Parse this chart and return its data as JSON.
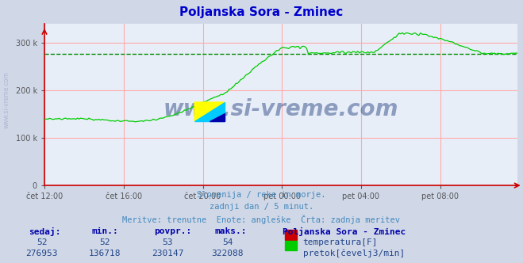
{
  "title": "Poljanska Sora - Zminec",
  "title_color": "#0000cc",
  "bg_color": "#d0d8e8",
  "plot_bg_color": "#e8eef8",
  "grid_color": "#ffaaaa",
  "avg_line_color": "#008800",
  "avg_line_value": 276953,
  "x_labels": [
    "čet 12:00",
    "čet 16:00",
    "čet 20:00",
    "pet 00:00",
    "pet 04:00",
    "pet 08:00"
  ],
  "x_ticks": [
    0,
    48,
    96,
    144,
    192,
    240
  ],
  "y_labels": [
    "0",
    "100 k",
    "200 k",
    "300 k"
  ],
  "y_ticks": [
    0,
    100000,
    200000,
    300000
  ],
  "ylim": [
    0,
    340000
  ],
  "xlim": [
    0,
    287
  ],
  "subtitle1": "Slovenija / reke in morje.",
  "subtitle2": "zadnji dan / 5 minut.",
  "subtitle3": "Meritve: trenutne  Enote: angleške  Črta: zadnja meritev",
  "subtitle_color": "#4488bb",
  "watermark": "www.si-vreme.com",
  "watermark_color": "#1a3a7a",
  "table_headers": [
    "sedaj:",
    "min.:",
    "povpr.:",
    "maks.:"
  ],
  "table_row1": [
    "52",
    "52",
    "53",
    "54"
  ],
  "table_row2": [
    "276953",
    "136718",
    "230147",
    "322088"
  ],
  "station_label": "Poljanska Sora - Zminec",
  "legend1": "temperatura[F]",
  "legend2": "pretok[čevelj3/min]",
  "legend1_color": "#cc0000",
  "legend2_color": "#00cc00",
  "flow_avg": 276953
}
